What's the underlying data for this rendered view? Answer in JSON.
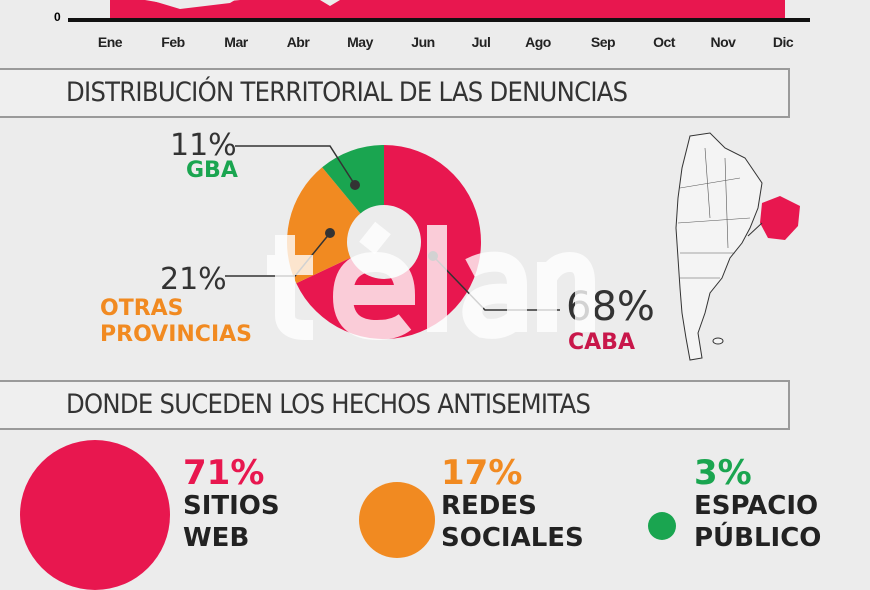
{
  "chart_data": [
    {
      "type": "area",
      "categories": [
        "Ene",
        "Feb",
        "Mar",
        "Abr",
        "May",
        "Jun",
        "Jul",
        "Ago",
        "Sep",
        "Oct",
        "Nov",
        "Dic"
      ],
      "y_tick_labels": [
        "0"
      ],
      "color": "#e8174f"
    },
    {
      "type": "pie",
      "title": "DISTRIBUCIÓN TERRITORIAL DE LAS DENUNCIAS",
      "slices": [
        {
          "label": "CABA",
          "value": 68,
          "value_label": "68%",
          "color": "#e8174f"
        },
        {
          "label": "OTRAS PROVINCIAS",
          "value": 21,
          "value_label": "21%",
          "color": "#f18a21"
        },
        {
          "label": "GBA",
          "value": 11,
          "value_label": "11%",
          "color": "#1aa550"
        }
      ]
    },
    {
      "type": "bubble",
      "title": "DONDE SUCEDEN LOS HECHOS ANTISEMITAS",
      "items": [
        {
          "value_label": "71%",
          "value": 71,
          "line1": "SITIOS",
          "line2": "WEB",
          "color": "#e8174f"
        },
        {
          "value_label": "17%",
          "value": 17,
          "line1": "REDES",
          "line2": "SOCIALES",
          "color": "#f18a21"
        },
        {
          "value_label": "3%",
          "value": 3,
          "line1": "ESPACIO",
          "line2": "PÚBLICO",
          "color": "#1aa550"
        }
      ]
    }
  ],
  "watermark": "télam"
}
